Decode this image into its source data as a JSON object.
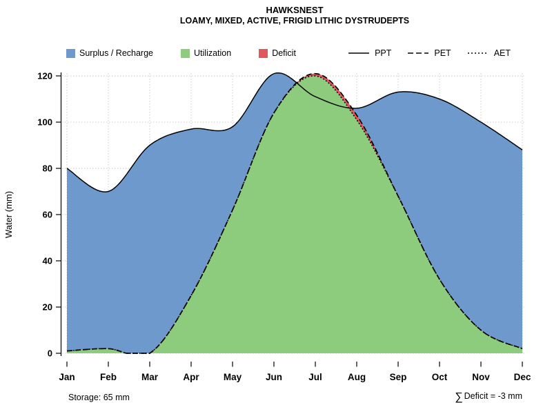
{
  "title": "HAWKSNEST",
  "subtitle": "LOAMY, MIXED, ACTIVE, FRIGID LITHIC DYSTRUDEPTS",
  "legend": {
    "areas": [
      {
        "label": "Surplus / Recharge",
        "color": "#6E99CC"
      },
      {
        "label": "Utilization",
        "color": "#8DCB7D"
      },
      {
        "label": "Deficit",
        "color": "#E0585C"
      }
    ],
    "lines": [
      {
        "label": "PPT",
        "style": "solid"
      },
      {
        "label": "PET",
        "style": "dashed"
      },
      {
        "label": "AET",
        "style": "dotted"
      }
    ]
  },
  "footer": {
    "storage": "Storage: 65 mm",
    "sigma": "∑",
    "deficit_text": "Deficit = -3 mm"
  },
  "chart_data": {
    "type": "area",
    "title": "HAWKSNEST",
    "subtitle": "LOAMY, MIXED, ACTIVE, FRIGID LITHIC DYSTRUDEPTS",
    "ylabel": "Water (mm)",
    "ylim": [
      0,
      120
    ],
    "yticks": [
      0,
      20,
      40,
      60,
      80,
      100,
      120
    ],
    "categories": [
      "Jan",
      "Feb",
      "Mar",
      "Apr",
      "May",
      "Jun",
      "Jul",
      "Aug",
      "Sep",
      "Oct",
      "Nov",
      "Dec"
    ],
    "series": [
      {
        "name": "PPT",
        "style": "solid",
        "values": [
          80,
          70,
          90,
          97,
          98,
          121,
          111,
          106,
          113,
          110,
          100,
          88
        ]
      },
      {
        "name": "PET",
        "style": "dashed",
        "values": [
          1,
          2,
          0,
          25,
          62,
          104,
          121,
          103,
          68,
          32,
          10,
          2
        ]
      },
      {
        "name": "AET",
        "style": "dotted",
        "values": [
          1,
          2,
          0,
          25,
          62,
          104,
          120,
          101,
          68,
          32,
          10,
          2
        ]
      }
    ],
    "areas": [
      {
        "name": "Surplus / Recharge",
        "color": "#6E99CC",
        "rule": "between PPT and AET (under PPT)"
      },
      {
        "name": "Utilization",
        "color": "#8DCB7D",
        "rule": "under AET"
      },
      {
        "name": "Deficit",
        "color": "#E0585C",
        "rule": "between PET and AET"
      }
    ],
    "grid": true,
    "legend_position": "top",
    "annotations": {
      "storage_mm": 65,
      "deficit_sum_mm": -3
    }
  }
}
